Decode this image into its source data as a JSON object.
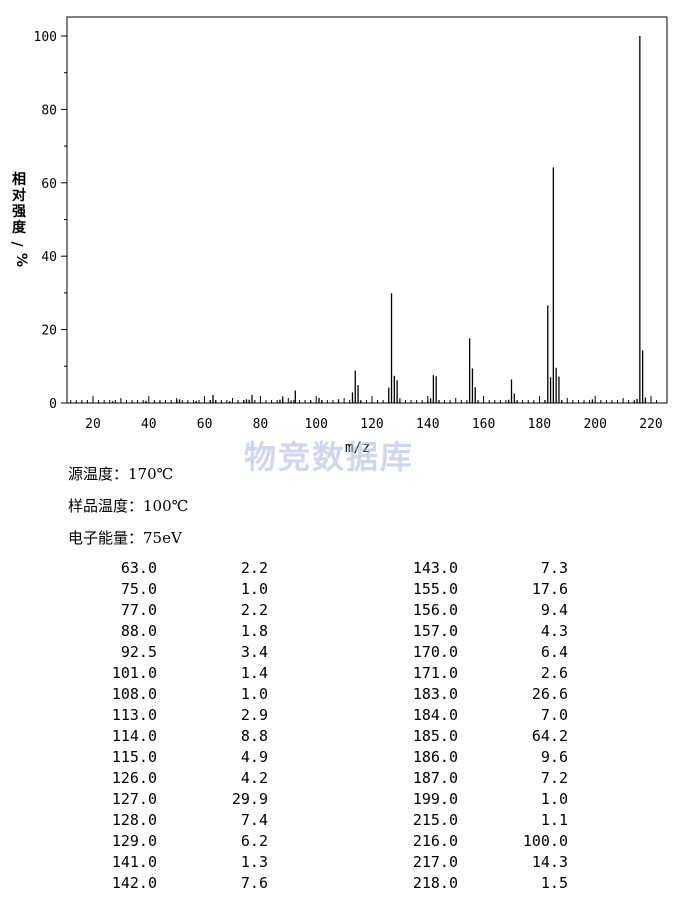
{
  "chart_data": {
    "type": "bar",
    "title": "",
    "xlabel": "m/z",
    "ylabel": "相对强度/%",
    "xlim": [
      10,
      223
    ],
    "ylim": [
      0,
      105
    ],
    "x_ticks": [
      20,
      40,
      60,
      80,
      100,
      120,
      140,
      160,
      180,
      200,
      220
    ],
    "y_ticks": [
      0,
      20,
      40,
      60,
      80,
      100
    ],
    "grid": false,
    "peaks": [
      {
        "x": 27,
        "y": 0.5
      },
      {
        "x": 39,
        "y": 0.6
      },
      {
        "x": 44,
        "y": 0.5
      },
      {
        "x": 50,
        "y": 0.8
      },
      {
        "x": 51,
        "y": 1.0
      },
      {
        "x": 57,
        "y": 0.6
      },
      {
        "x": 62,
        "y": 0.8
      },
      {
        "x": 63,
        "y": 2.2
      },
      {
        "x": 64,
        "y": 0.7
      },
      {
        "x": 69,
        "y": 0.5
      },
      {
        "x": 74,
        "y": 0.8
      },
      {
        "x": 75,
        "y": 1.0
      },
      {
        "x": 76,
        "y": 0.9
      },
      {
        "x": 77,
        "y": 2.2
      },
      {
        "x": 87,
        "y": 0.9
      },
      {
        "x": 88,
        "y": 1.8
      },
      {
        "x": 91,
        "y": 0.7
      },
      {
        "x": 92.5,
        "y": 3.4
      },
      {
        "x": 98,
        "y": 0.6
      },
      {
        "x": 101,
        "y": 1.4
      },
      {
        "x": 102,
        "y": 0.8
      },
      {
        "x": 108,
        "y": 1.0
      },
      {
        "x": 113,
        "y": 2.9
      },
      {
        "x": 114,
        "y": 8.8
      },
      {
        "x": 115,
        "y": 4.9
      },
      {
        "x": 116,
        "y": 0.6
      },
      {
        "x": 126,
        "y": 4.2
      },
      {
        "x": 127,
        "y": 29.9
      },
      {
        "x": 128,
        "y": 7.4
      },
      {
        "x": 129,
        "y": 6.2
      },
      {
        "x": 130,
        "y": 0.7
      },
      {
        "x": 140,
        "y": 0.6
      },
      {
        "x": 141,
        "y": 1.3
      },
      {
        "x": 142,
        "y": 7.6
      },
      {
        "x": 143,
        "y": 7.3
      },
      {
        "x": 144,
        "y": 0.8
      },
      {
        "x": 155,
        "y": 17.6
      },
      {
        "x": 156,
        "y": 9.4
      },
      {
        "x": 157,
        "y": 4.3
      },
      {
        "x": 158,
        "y": 0.5
      },
      {
        "x": 169,
        "y": 0.9
      },
      {
        "x": 170,
        "y": 6.4
      },
      {
        "x": 171,
        "y": 2.6
      },
      {
        "x": 172,
        "y": 0.5
      },
      {
        "x": 182,
        "y": 0.8
      },
      {
        "x": 183,
        "y": 26.6
      },
      {
        "x": 184,
        "y": 7.0
      },
      {
        "x": 185,
        "y": 64.2
      },
      {
        "x": 186,
        "y": 9.6
      },
      {
        "x": 187,
        "y": 7.2
      },
      {
        "x": 188,
        "y": 0.7
      },
      {
        "x": 199,
        "y": 1.0
      },
      {
        "x": 214,
        "y": 0.6
      },
      {
        "x": 215,
        "y": 1.1
      },
      {
        "x": 216,
        "y": 100.0
      },
      {
        "x": 217,
        "y": 14.3
      },
      {
        "x": 218,
        "y": 1.5
      }
    ]
  },
  "watermark": "物竞数据库",
  "conditions": [
    {
      "label": "源温度：",
      "value": "170℃"
    },
    {
      "label": "样品温度：",
      "value": "100℃"
    },
    {
      "label": "电子能量：",
      "value": "75eV"
    }
  ],
  "peak_table": [
    [
      "63.0",
      "2.2",
      "143.0",
      "7.3"
    ],
    [
      "75.0",
      "1.0",
      "155.0",
      "17.6"
    ],
    [
      "77.0",
      "2.2",
      "156.0",
      "9.4"
    ],
    [
      "88.0",
      "1.8",
      "157.0",
      "4.3"
    ],
    [
      "92.5",
      "3.4",
      "170.0",
      "6.4"
    ],
    [
      "101.0",
      "1.4",
      "171.0",
      "2.6"
    ],
    [
      "108.0",
      "1.0",
      "183.0",
      "26.6"
    ],
    [
      "113.0",
      "2.9",
      "184.0",
      "7.0"
    ],
    [
      "114.0",
      "8.8",
      "185.0",
      "64.2"
    ],
    [
      "115.0",
      "4.9",
      "186.0",
      "9.6"
    ],
    [
      "126.0",
      "4.2",
      "187.0",
      "7.2"
    ],
    [
      "127.0",
      "29.9",
      "199.0",
      "1.0"
    ],
    [
      "128.0",
      "7.4",
      "215.0",
      "1.1"
    ],
    [
      "129.0",
      "6.2",
      "216.0",
      "100.0"
    ],
    [
      "141.0",
      "1.3",
      "217.0",
      "14.3"
    ],
    [
      "142.0",
      "7.6",
      "218.0",
      "1.5"
    ]
  ]
}
